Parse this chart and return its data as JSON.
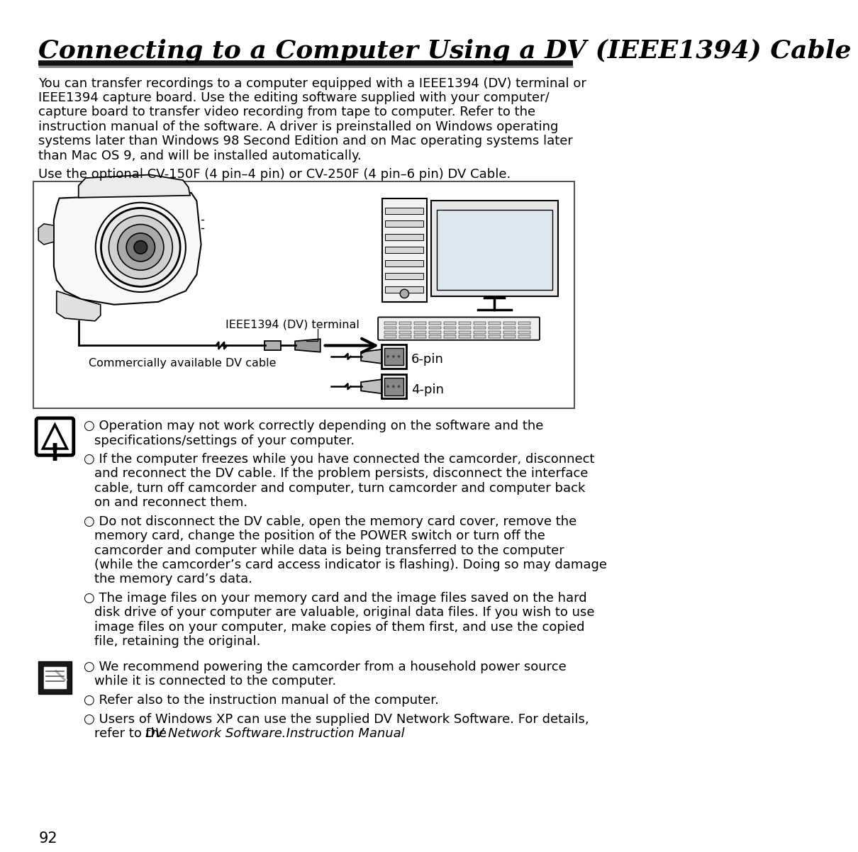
{
  "title": "Connecting to a Computer Using a DV (IEEE1394) Cable",
  "bg_color": "#ffffff",
  "page_number": "92",
  "intro_lines": [
    "You can transfer recordings to a computer equipped with a IEEE1394 (DV) terminal or",
    "IEEE1394 capture board. Use the editing software supplied with your computer/",
    "capture board to transfer video recording from tape to computer. Refer to the",
    "instruction manual of the software. A driver is preinstalled on Windows operating",
    "systems later than Windows 98 Second Edition and on Mac operating systems later",
    "than Mac OS 9, and will be installed automatically."
  ],
  "optional_text": "Use the optional CV-150F (4 pin–4 pin) or CV-250F (4 pin–6 pin) DV Cable.",
  "diagram_label_terminal": "IEEE1394 (DV) terminal",
  "diagram_label_cable": "Commercially available DV cable",
  "pin6_label": "6-pin",
  "pin4_label": "4-pin",
  "warning_bullets": [
    [
      "Operation may not work correctly depending on the software and the",
      "specifications/settings of your computer."
    ],
    [
      "If the computer freezes while you have connected the camcorder, disconnect",
      "and reconnect the DV cable. If the problem persists, disconnect the interface",
      "cable, turn off camcorder and computer, turn camcorder and computer back",
      "on and reconnect them."
    ],
    [
      "Do not disconnect the DV cable, open the memory card cover, remove the",
      "memory card, change the position of the POWER switch or turn off the",
      "camcorder and computer while data is being transferred to the computer",
      "(while the camcorder’s card access indicator is flashing). Doing so may damage",
      "the memory card’s data."
    ],
    [
      "The image files on your memory card and the image files saved on the hard",
      "disk drive of your computer are valuable, original data files. If you wish to use",
      "image files on your computer, make copies of them first, and use the copied",
      "file, retaining the original."
    ]
  ],
  "note_bullets": [
    [
      "We recommend powering the camcorder from a household power source",
      "while it is connected to the computer."
    ],
    [
      "Refer also to the instruction manual of the computer."
    ],
    [
      "Users of Windows XP can use the supplied DV Network Software. For details,",
      "refer to the _DV Network Software Instruction Manual_."
    ]
  ]
}
